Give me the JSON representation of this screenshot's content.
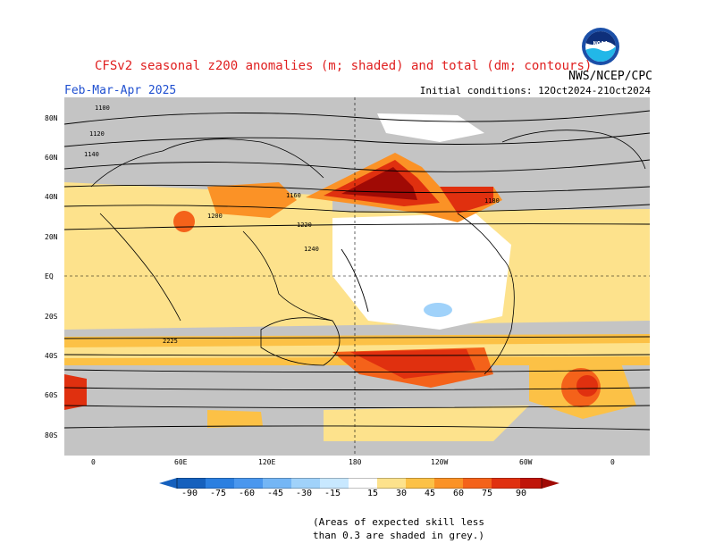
{
  "header": {
    "title": "CFSv2 seasonal z200 anomalies (m; shaded) and total (dm; contours)",
    "period": "Feb-Mar-Apr 2025",
    "initial_conditions": "Initial conditions: 12Oct2024-21Oct2024",
    "agency": "NWS/NCEP/CPC",
    "logo_text": "NOAA"
  },
  "map": {
    "lat_labels": [
      "80N",
      "60N",
      "40N",
      "20N",
      "EQ",
      "20S",
      "40S",
      "60S",
      "80S"
    ],
    "lon_labels": [
      "0",
      "60E",
      "120E",
      "180",
      "120W",
      "60W",
      "0"
    ],
    "contour_labels": [
      "1100",
      "1120",
      "1140",
      "1160",
      "1180",
      "1200",
      "1220",
      "1240",
      "2225"
    ]
  },
  "colorbar": {
    "labels": [
      "-90",
      "-75",
      "-60",
      "-45",
      "-30",
      "-15",
      "15",
      "30",
      "45",
      "60",
      "75",
      "90"
    ],
    "colors": [
      "#1560bd",
      "#2b7fe0",
      "#4a97ee",
      "#74b6f5",
      "#a0d2fa",
      "#c8e8ff",
      "#ffffff",
      "#fde28c",
      "#fcc146",
      "#fb9226",
      "#f4621a",
      "#e0300f",
      "#c0150a",
      "#a00a05"
    ]
  },
  "footnote": {
    "line1": "(Areas of expected skill less",
    "line2": "than 0.3 are shaded in grey.)"
  }
}
